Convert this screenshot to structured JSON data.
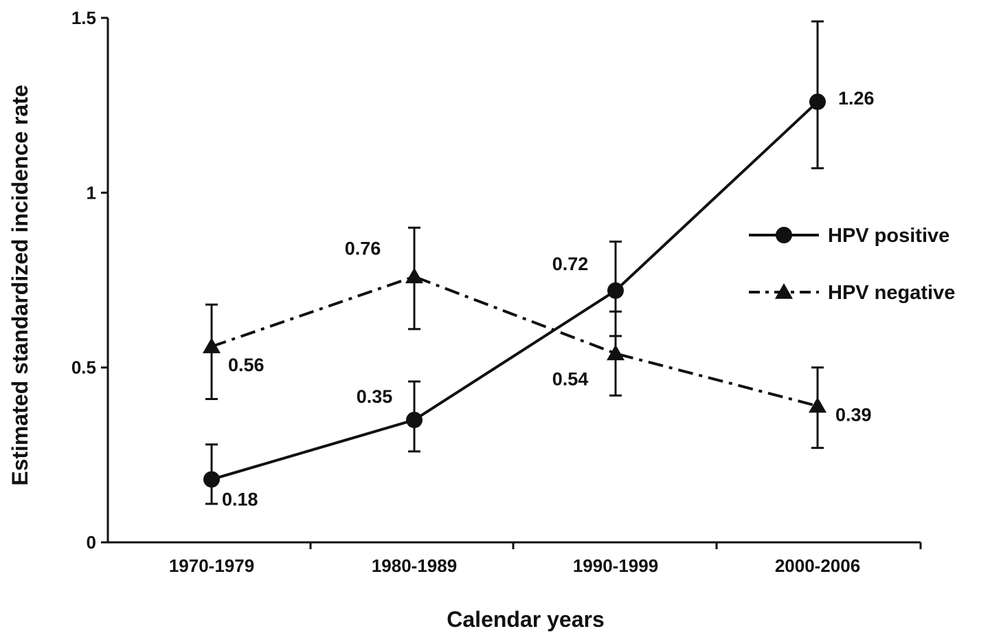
{
  "chart_data": {
    "type": "line",
    "title": "",
    "xlabel": "Calendar years",
    "ylabel": "Estimated standardized incidence rate",
    "categories": [
      "1970-1979",
      "1980-1989",
      "1990-1999",
      "2000-2006"
    ],
    "ylim": [
      0,
      1.5
    ],
    "yticks": [
      0,
      0.5,
      1,
      1.5
    ],
    "ytick_labels": [
      "0",
      "0.5",
      "1",
      "1.5"
    ],
    "grid": false,
    "legend_position": "right",
    "series": [
      {
        "name": "HPV positive",
        "marker": "circle",
        "line_style": "solid",
        "values": [
          0.18,
          0.35,
          0.72,
          1.26
        ],
        "error_low": [
          0.11,
          0.26,
          0.59,
          1.07
        ],
        "error_high": [
          0.28,
          0.46,
          0.86,
          1.49
        ],
        "labels": [
          "0.18",
          "0.35",
          "0.72",
          "1.26"
        ]
      },
      {
        "name": "HPV negative",
        "marker": "triangle",
        "line_style": "dash-dot",
        "values": [
          0.56,
          0.76,
          0.54,
          0.39
        ],
        "error_low": [
          0.41,
          0.61,
          0.42,
          0.27
        ],
        "error_high": [
          0.68,
          0.9,
          0.66,
          0.5
        ],
        "labels": [
          "0.56",
          "0.76",
          "0.54",
          "0.39"
        ]
      }
    ],
    "colors": {
      "line": "#111111",
      "axis": "#111111",
      "background": "#ffffff"
    }
  }
}
